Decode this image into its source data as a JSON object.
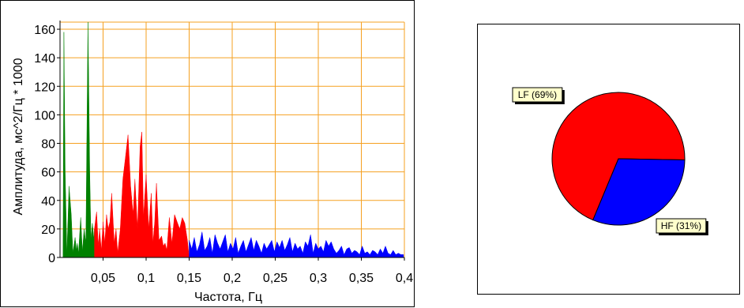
{
  "chart_data": [
    {
      "type": "area",
      "xlabel": "Частота, Гц",
      "ylabel": "Амплитуда, мс^2/Гц * 1000",
      "xlim": [
        0,
        0.4
      ],
      "ylim": [
        0,
        165
      ],
      "x_ticks": [
        0.05,
        0.1,
        0.15,
        0.2,
        0.25,
        0.3,
        0.35,
        0.4
      ],
      "x_tick_labels": [
        "0,05",
        "0,1",
        "0,15",
        "0,2",
        "0,25",
        "0,3",
        "0,35",
        "0,4"
      ],
      "y_ticks": [
        0,
        20,
        40,
        60,
        80,
        100,
        120,
        140,
        160
      ],
      "y_tick_labels": [
        "0",
        "20",
        "40",
        "60",
        "80",
        "100",
        "120",
        "140",
        "160"
      ],
      "grid": true,
      "grid_color": "#f5a020",
      "series": [
        {
          "color": "#008000",
          "x": [
            0.0035,
            0.0045,
            0.006,
            0.008,
            0.0105,
            0.013,
            0.015,
            0.0175,
            0.019,
            0.02,
            0.0215,
            0.024,
            0.026,
            0.028,
            0.03,
            0.0325,
            0.0345,
            0.036,
            0.0375,
            0.0395,
            0.04
          ],
          "values": [
            0,
            158,
            60,
            2,
            50,
            30,
            3,
            14,
            5,
            10,
            3,
            28,
            4,
            20,
            10,
            165,
            60,
            12,
            24,
            12,
            20
          ]
        },
        {
          "color": "#ff0000",
          "x": [
            0.04,
            0.0425,
            0.0445,
            0.046,
            0.048,
            0.05,
            0.052,
            0.054,
            0.056,
            0.058,
            0.06,
            0.063,
            0.065,
            0.067,
            0.07,
            0.073,
            0.076,
            0.079,
            0.082,
            0.085,
            0.087,
            0.09,
            0.093,
            0.095,
            0.097,
            0.1,
            0.103,
            0.106,
            0.108,
            0.11,
            0.112,
            0.115,
            0.118,
            0.12,
            0.122,
            0.124,
            0.127,
            0.13,
            0.133,
            0.136,
            0.139,
            0.142,
            0.145,
            0.148,
            0.15
          ],
          "values": [
            20,
            32,
            8,
            20,
            5,
            25,
            10,
            30,
            20,
            25,
            45,
            10,
            20,
            3,
            20,
            55,
            70,
            86,
            50,
            30,
            55,
            20,
            78,
            88,
            28,
            58,
            20,
            45,
            10,
            25,
            52,
            12,
            15,
            8,
            10,
            5,
            28,
            10,
            30,
            25,
            20,
            28,
            24,
            12,
            0
          ]
        },
        {
          "color": "#0000ff",
          "x": [
            0.15,
            0.153,
            0.156,
            0.159,
            0.162,
            0.165,
            0.168,
            0.171,
            0.174,
            0.177,
            0.18,
            0.183,
            0.186,
            0.189,
            0.192,
            0.195,
            0.198,
            0.201,
            0.204,
            0.207,
            0.21,
            0.213,
            0.216,
            0.219,
            0.222,
            0.225,
            0.228,
            0.231,
            0.234,
            0.237,
            0.24,
            0.243,
            0.246,
            0.249,
            0.252,
            0.255,
            0.258,
            0.261,
            0.264,
            0.267,
            0.27,
            0.273,
            0.276,
            0.279,
            0.282,
            0.285,
            0.288,
            0.291,
            0.294,
            0.297,
            0.3,
            0.303,
            0.306,
            0.309,
            0.312,
            0.315,
            0.318,
            0.321,
            0.324,
            0.327,
            0.33,
            0.333,
            0.336,
            0.339,
            0.342,
            0.345,
            0.348,
            0.351,
            0.354,
            0.357,
            0.36,
            0.363,
            0.366,
            0.369,
            0.372,
            0.375,
            0.378,
            0.381,
            0.384,
            0.387,
            0.39,
            0.393,
            0.396,
            0.399
          ],
          "values": [
            12,
            6,
            14,
            4,
            9,
            18,
            5,
            8,
            14,
            3,
            16,
            10,
            6,
            11,
            16,
            4,
            10,
            6,
            14,
            3,
            8,
            12,
            4,
            9,
            14,
            5,
            12,
            8,
            3,
            10,
            6,
            9,
            12,
            4,
            11,
            7,
            12,
            5,
            9,
            14,
            4,
            10,
            6,
            8,
            3,
            11,
            8,
            16,
            3,
            10,
            6,
            8,
            4,
            12,
            8,
            11,
            6,
            3,
            5,
            8,
            2,
            6,
            7,
            3,
            5,
            4,
            2,
            8,
            3,
            4,
            2,
            5,
            4,
            2,
            6,
            3,
            8,
            3,
            2,
            5,
            2,
            3,
            2,
            2
          ]
        }
      ]
    },
    {
      "type": "pie",
      "slices": [
        {
          "label": "LF (69%)",
          "value": 69,
          "color": "#ff0000"
        },
        {
          "label": "HF (31%)",
          "value": 31,
          "color": "#0000ff"
        }
      ],
      "label_bg": "#ffffcc"
    }
  ]
}
